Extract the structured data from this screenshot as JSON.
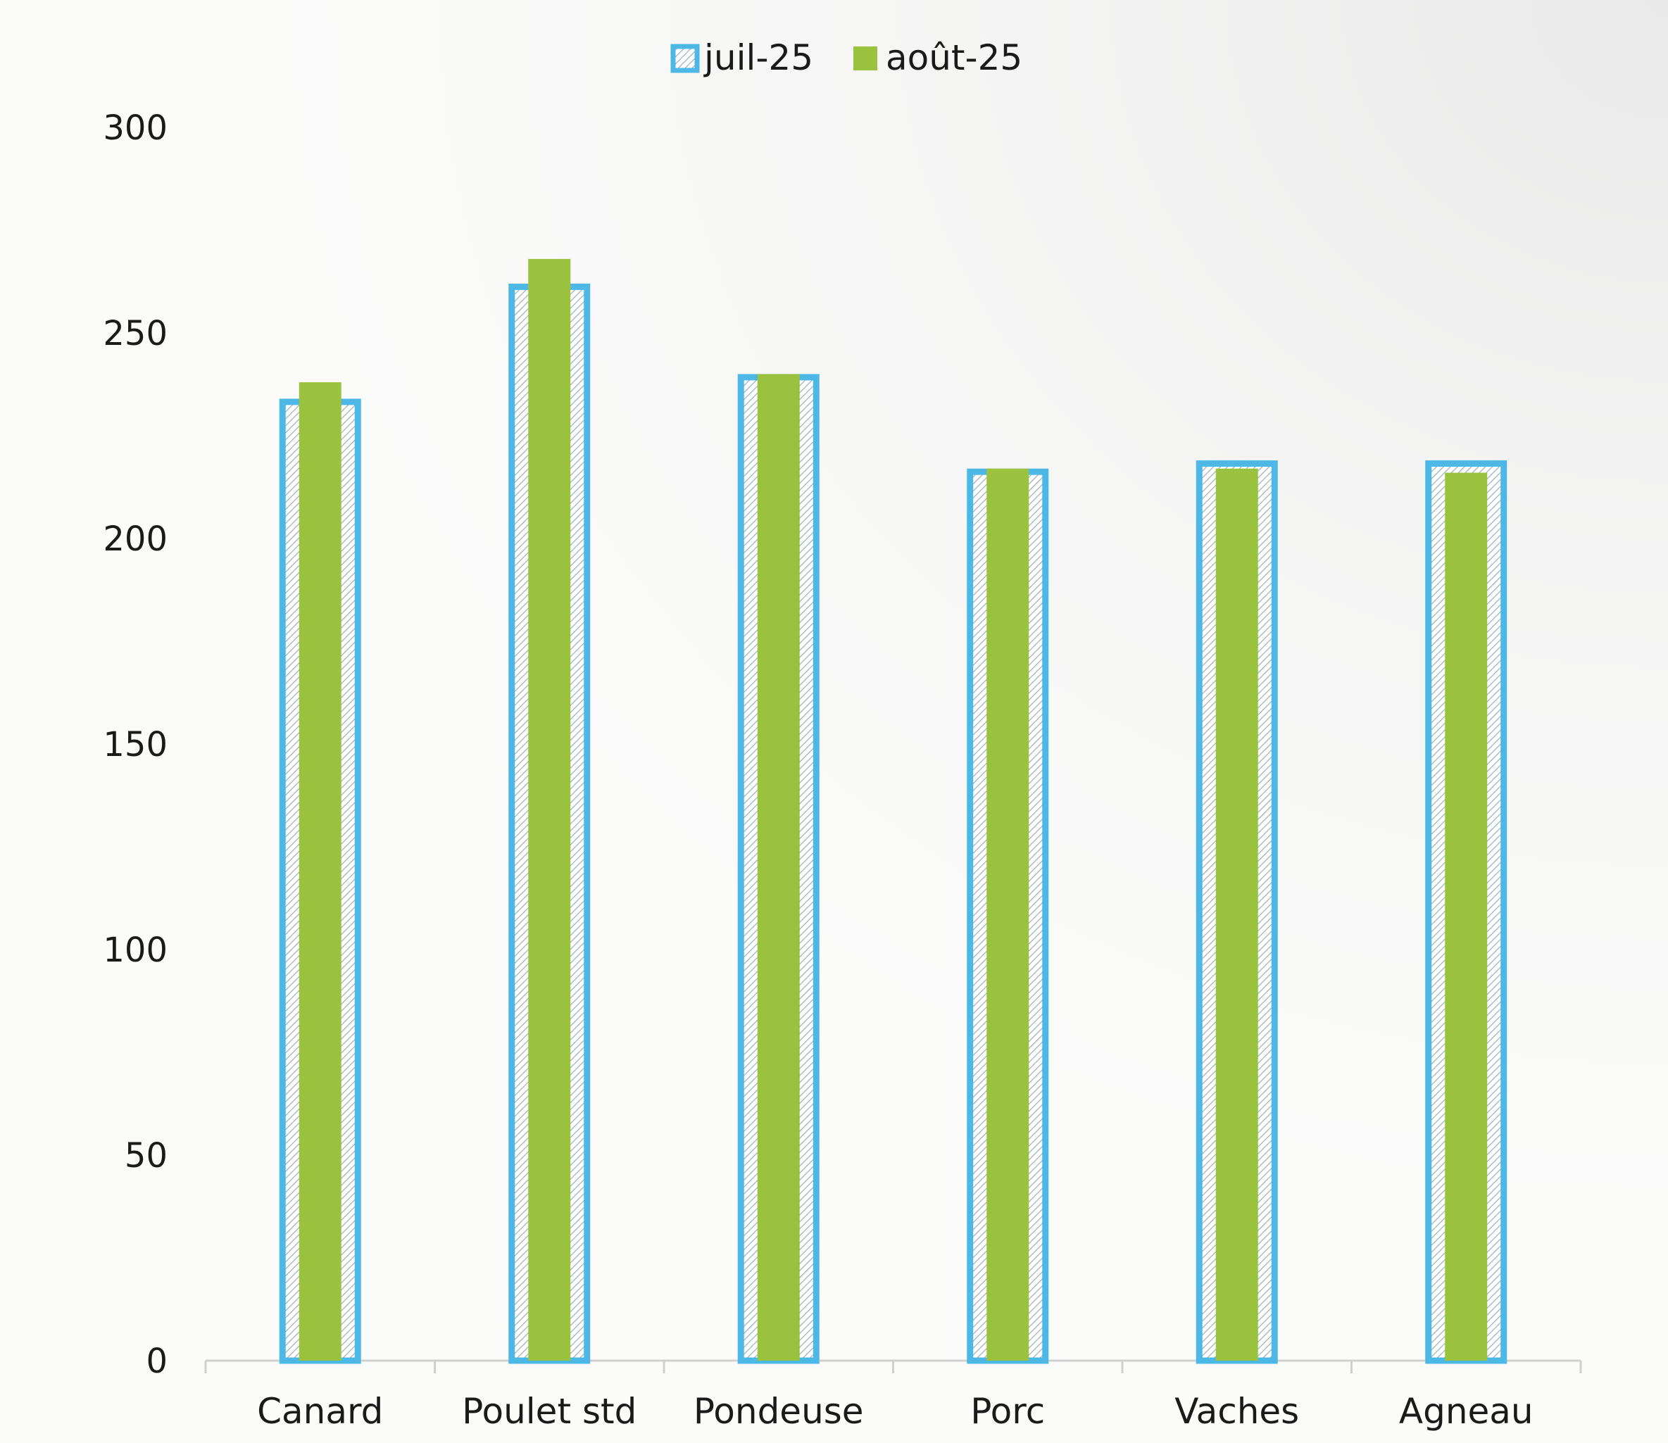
{
  "chart_data": {
    "type": "bar",
    "categories": [
      "Canard",
      "Poulet std",
      "Pondeuse",
      "Porc",
      "Vaches",
      "Agneau"
    ],
    "series": [
      {
        "name": "juil-25",
        "values": [
          234,
          262,
          240,
          217,
          219,
          219
        ],
        "color": "#4db8e6",
        "style": "hatched-outline"
      },
      {
        "name": "août-25",
        "values": [
          238,
          268,
          240,
          217,
          217,
          216
        ],
        "color": "#9bc23f",
        "style": "solid"
      }
    ],
    "y_ticks": [
      "0",
      "50",
      "100",
      "150",
      "200",
      "250",
      "300"
    ],
    "ylim": [
      0,
      300
    ],
    "grid": false,
    "legend_position": "top-center"
  },
  "colors": {
    "axis": "#d0d0d0",
    "text": "#1a1a1a",
    "juil": "#4db8e6",
    "aout": "#9bc23f"
  }
}
